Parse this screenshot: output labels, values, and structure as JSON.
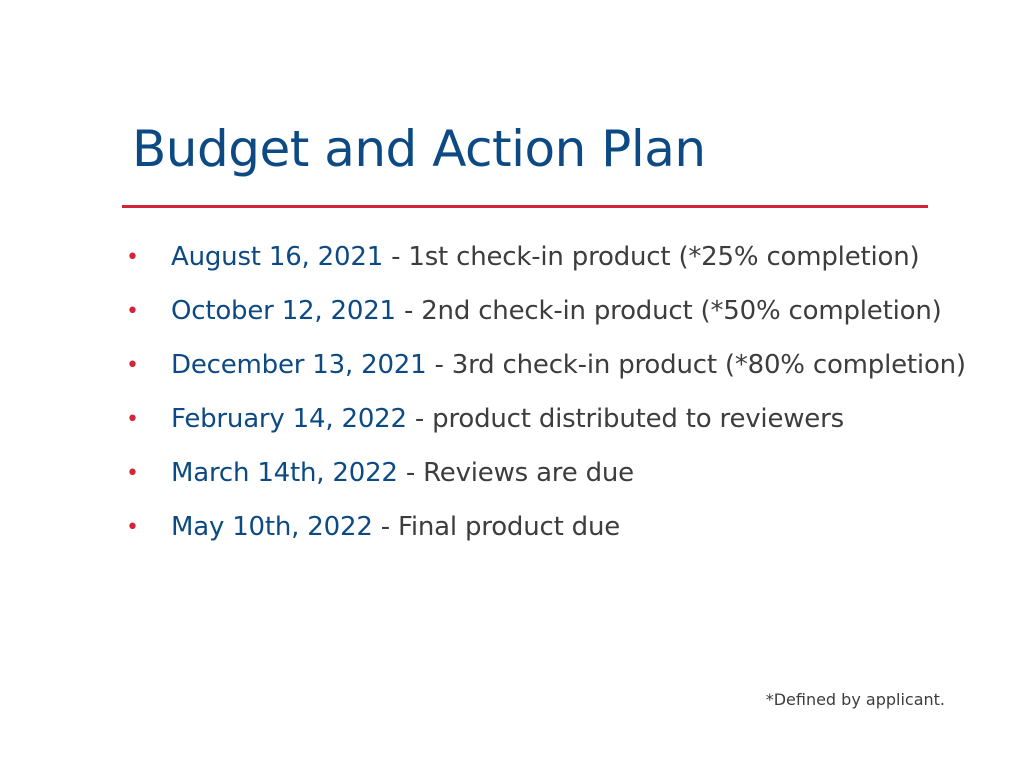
{
  "slide": {
    "title": "Budget and Action Plan",
    "items": [
      {
        "date": "August 16, 2021",
        "text": " - 1st check-in product (*25% completion)"
      },
      {
        "date": "October 12, 2021",
        "text": " - 2nd check-in product (*50% completion)"
      },
      {
        "date": "December 13, 2021",
        "text": " - 3rd check-in product (*80% completion)"
      },
      {
        "date": "February 14, 2022",
        "text": " - product distributed to reviewers"
      },
      {
        "date": "March 14th, 2022",
        "text": " - Reviews are due"
      },
      {
        "date": "May 10th, 2022",
        "text": " - Final product due"
      }
    ],
    "footnote": "*Defined by applicant."
  },
  "colors": {
    "title": "#0d4a84",
    "date": "#0d4a84",
    "accent": "#d3253a",
    "body_text": "#3d3d3d"
  },
  "icons": {
    "bullet": "bullet-dot-icon"
  }
}
